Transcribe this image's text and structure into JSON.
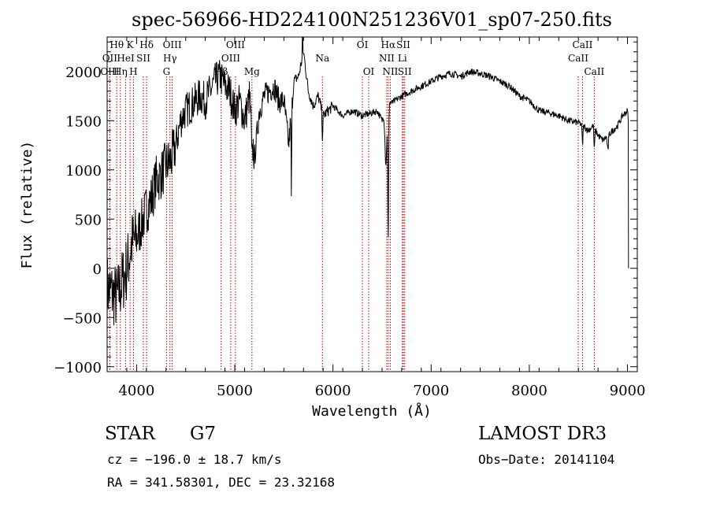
{
  "chart_data": {
    "type": "line",
    "title": "spec-56966-HD224100N251236V01_sp07-250.fits",
    "xlabel": "Wavelength (Å)",
    "ylabel": "Flux (relative)",
    "xlim": [
      3700,
      9100
    ],
    "ylim": [
      -1050,
      2350
    ],
    "x_ticks": [
      4000,
      5000,
      6000,
      7000,
      8000,
      9000
    ],
    "x_tick_labels": [
      "4000",
      "5000",
      "6000",
      "7000",
      "8000",
      "9000"
    ],
    "y_ticks": [
      -1000,
      -500,
      0,
      500,
      1000,
      1500,
      2000
    ],
    "y_tick_labels": [
      "−1000",
      "−500",
      "0",
      "500",
      "1000",
      "1500",
      "2000"
    ],
    "series": [
      {
        "name": "flux",
        "x": [
          3700,
          3750,
          3800,
          3850,
          3900,
          3950,
          4000,
          4050,
          4100,
          4150,
          4200,
          4250,
          4300,
          4350,
          4400,
          4450,
          4500,
          4550,
          4600,
          4650,
          4700,
          4750,
          4800,
          4850,
          4900,
          4950,
          5000,
          5050,
          5100,
          5150,
          5200,
          5250,
          5300,
          5350,
          5400,
          5450,
          5500,
          5550,
          5600,
          5650,
          5700,
          5750,
          5800,
          5850,
          5900,
          5950,
          6000,
          6100,
          6200,
          6300,
          6400,
          6450,
          6500,
          6550,
          6600,
          6700,
          6800,
          6900,
          7000,
          7100,
          7200,
          7300,
          7400,
          7500,
          7600,
          7700,
          7800,
          7900,
          8000,
          8100,
          8200,
          8300,
          8400,
          8500,
          8550,
          8600,
          8650,
          8700,
          8750,
          8800,
          8850,
          8900,
          8950,
          9000,
          9010
        ],
        "y": [
          -200,
          -250,
          -300,
          -150,
          0,
          250,
          300,
          450,
          600,
          700,
          900,
          950,
          1050,
          1100,
          1250,
          1500,
          1600,
          1650,
          1700,
          1750,
          1700,
          1800,
          1900,
          1950,
          1850,
          1800,
          1600,
          1700,
          1500,
          1750,
          1100,
          1600,
          1750,
          1800,
          1850,
          1700,
          1700,
          1250,
          1900,
          1950,
          2200,
          1800,
          1650,
          1750,
          1550,
          1600,
          1650,
          1550,
          1600,
          1550,
          1580,
          1600,
          1500,
          1700,
          1680,
          1750,
          1800,
          1850,
          1900,
          1950,
          1980,
          1950,
          2000,
          1980,
          1950,
          1900,
          1850,
          1750,
          1700,
          1600,
          1580,
          1550,
          1500,
          1480,
          1450,
          1400,
          1450,
          1350,
          1300,
          1350,
          1400,
          1450,
          1550,
          1600,
          1500
        ]
      }
    ],
    "line_markers": [
      {
        "label": "Hθ",
        "wavelength": 3798,
        "row": 1
      },
      {
        "label": "OII",
        "wavelength": 3727,
        "row": 2
      },
      {
        "label": "Hη",
        "wavelength": 3835,
        "row": 3
      },
      {
        "label": "OIII",
        "wavelength": 3727,
        "row": 3
      },
      {
        "label": "HeI",
        "wavelength": 3889,
        "row": 2
      },
      {
        "label": "K",
        "wavelength": 3934,
        "row": 1
      },
      {
        "label": "H",
        "wavelength": 3968,
        "row": 3
      },
      {
        "label": "SII",
        "wavelength": 4069,
        "row": 2
      },
      {
        "label": "Hδ",
        "wavelength": 4102,
        "row": 1
      },
      {
        "label": "OIII",
        "wavelength": 4363,
        "row": 1
      },
      {
        "label": "Hγ",
        "wavelength": 4340,
        "row": 2
      },
      {
        "label": "G",
        "wavelength": 4305,
        "row": 3
      },
      {
        "label": "Hβ",
        "wavelength": 4861,
        "row": 3
      },
      {
        "label": "OIII",
        "wavelength": 5007,
        "row": 1
      },
      {
        "label": "OIII",
        "wavelength": 4959,
        "row": 2
      },
      {
        "label": "Mg",
        "wavelength": 5175,
        "row": 3
      },
      {
        "label": "Na",
        "wavelength": 5893,
        "row": 2
      },
      {
        "label": "OI",
        "wavelength": 6300,
        "row": 1
      },
      {
        "label": "OI",
        "wavelength": 6364,
        "row": 3
      },
      {
        "label": "Hα",
        "wavelength": 6563,
        "row": 1
      },
      {
        "label": "NII",
        "wavelength": 6548,
        "row": 2
      },
      {
        "label": "NII",
        "wavelength": 6584,
        "row": 3
      },
      {
        "label": "SII",
        "wavelength": 6717,
        "row": 1
      },
      {
        "label": "Li",
        "wavelength": 6707,
        "row": 2
      },
      {
        "label": "SII",
        "wavelength": 6731,
        "row": 3
      },
      {
        "label": "CaII",
        "wavelength": 8542,
        "row": 1
      },
      {
        "label": "CaII",
        "wavelength": 8498,
        "row": 2
      },
      {
        "label": "CaII",
        "wavelength": 8662,
        "row": 3
      }
    ]
  },
  "info": {
    "object_class": "STAR",
    "subclass": "G7",
    "survey": "LAMOST DR3",
    "redshift_text": "cz = −196.0 ± 18.7 km/s",
    "obs_date_text": "Obs−Date: 20141104",
    "coords_text": "RA = 341.58301, DEC =  23.32168"
  }
}
